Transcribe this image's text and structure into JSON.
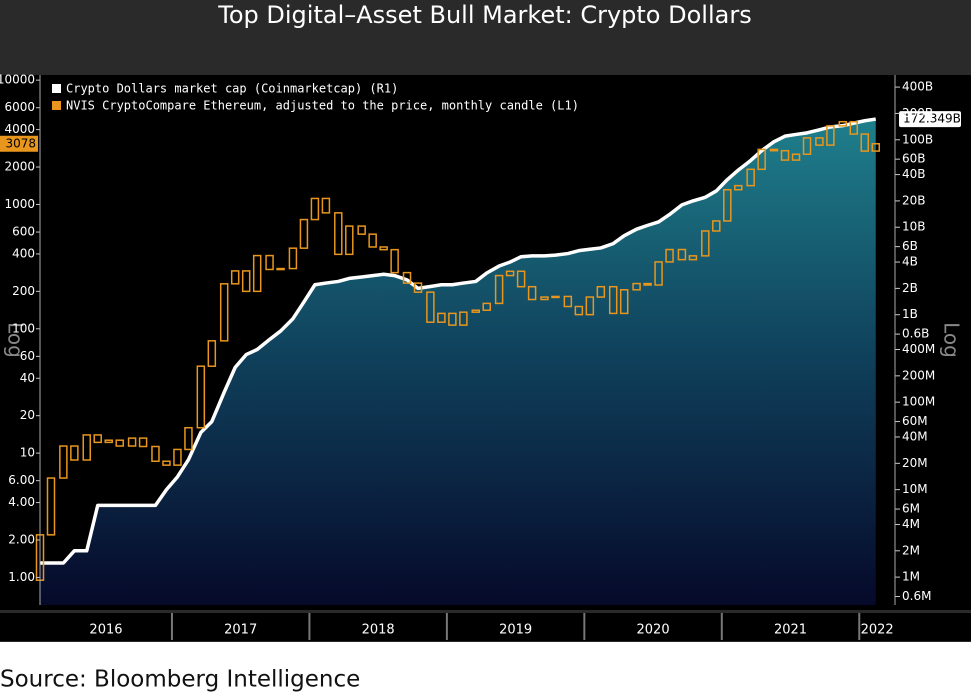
{
  "chart_data": {
    "type": "candle-area",
    "title": "Top Digital–Asset Bull Market: Crypto Dollars",
    "source": "Source: Bloomberg Intelligence",
    "y_label": "Log",
    "y2_label": "Log",
    "log_scale": true,
    "x": [
      2016.04,
      2016.12,
      2016.21,
      2016.29,
      2016.38,
      2016.46,
      2016.54,
      2016.62,
      2016.71,
      2016.79,
      2016.88,
      2016.96,
      2017.04,
      2017.12,
      2017.21,
      2017.29,
      2017.38,
      2017.46,
      2017.54,
      2017.62,
      2017.71,
      2017.79,
      2017.88,
      2017.96,
      2018.04,
      2018.12,
      2018.21,
      2018.29,
      2018.38,
      2018.46,
      2018.54,
      2018.62,
      2018.71,
      2018.79,
      2018.88,
      2018.96,
      2019.04,
      2019.12,
      2019.21,
      2019.29,
      2019.38,
      2019.46,
      2019.54,
      2019.62,
      2019.71,
      2019.79,
      2019.88,
      2019.96,
      2020.04,
      2020.12,
      2020.21,
      2020.29,
      2020.38,
      2020.46,
      2020.54,
      2020.62,
      2020.71,
      2020.79,
      2020.88,
      2020.96,
      2021.04,
      2021.12,
      2021.21,
      2021.29,
      2021.38,
      2021.46,
      2021.54,
      2021.62,
      2021.71,
      2021.79,
      2021.88,
      2021.96,
      2022.04,
      2022.12
    ],
    "xlim": [
      2016.04,
      2022.26
    ],
    "xticks": [
      2016,
      2017,
      2018,
      2019,
      2020,
      2021,
      2022
    ],
    "ylim": [
      0.6,
      11000
    ],
    "yticks": [
      {
        "value": 1,
        "label": "1.00"
      },
      {
        "value": 2,
        "label": "2.00"
      },
      {
        "value": 4,
        "label": "4.00"
      },
      {
        "value": 6,
        "label": "6.00"
      },
      10,
      20,
      40,
      60,
      100,
      200,
      400,
      600,
      1000,
      2000,
      4000,
      6000,
      10000
    ],
    "y2lim": [
      480000,
      550000000000
    ],
    "y2ticks": [
      {
        "value": 600000,
        "label": "0.6M"
      },
      {
        "value": 1000000,
        "label": "1M"
      },
      {
        "value": 2000000,
        "label": "2M"
      },
      {
        "value": 4000000,
        "label": "4M"
      },
      {
        "value": 6000000,
        "label": "6M"
      },
      {
        "value": 10000000,
        "label": "10M"
      },
      {
        "value": 20000000,
        "label": "20M"
      },
      {
        "value": 40000000,
        "label": "40M"
      },
      {
        "value": 60000000,
        "label": "60M"
      },
      {
        "value": 100000000,
        "label": "100M"
      },
      {
        "value": 200000000,
        "label": "200M"
      },
      {
        "value": 400000000,
        "label": "400M"
      },
      {
        "value": 600000000,
        "label": "0.6B"
      },
      {
        "value": 1000000000,
        "label": "1B"
      },
      {
        "value": 2000000000,
        "label": "2B"
      },
      {
        "value": 4000000000,
        "label": "4B"
      },
      {
        "value": 6000000000,
        "label": "6B"
      },
      {
        "value": 10000000000,
        "label": "10B"
      },
      {
        "value": 20000000000,
        "label": "20B"
      },
      {
        "value": 40000000000,
        "label": "40B"
      },
      {
        "value": 60000000000,
        "label": "60B"
      },
      {
        "value": 100000000000,
        "label": "100B"
      },
      {
        "value": 200000000000,
        "label": "200B"
      },
      {
        "value": 400000000000,
        "label": "400B"
      }
    ],
    "series": [
      {
        "name": "Crypto Dollars market cap (Coinmarketcap) (R1)",
        "color": "#ffffff",
        "axis": "y2",
        "last_label": "172.349B",
        "values": [
          1450000,
          1450000,
          1450000,
          2000000,
          2000000,
          6600000,
          6600000,
          6600000,
          6600000,
          6600000,
          6600000,
          10000000,
          14000000,
          22000000,
          45000000,
          60000000,
          130000000,
          250000000,
          350000000,
          400000000,
          520000000,
          650000000,
          900000000,
          1400000000,
          2200000000,
          2300000000,
          2400000000,
          2600000000,
          2700000000,
          2800000000,
          2900000000,
          2800000000,
          2500000000,
          2000000000,
          2100000000,
          2200000000,
          2200000000,
          2300000000,
          2400000000,
          3000000000,
          3600000000,
          4000000000,
          4600000000,
          4700000000,
          4700000000,
          4800000000,
          5000000000,
          5400000000,
          5600000000,
          5800000000,
          6500000000,
          8000000000,
          9500000000,
          10500000000,
          11500000000,
          14000000000,
          18000000000,
          20000000000,
          22000000000,
          26000000000,
          35000000000,
          45000000000,
          58000000000,
          75000000000,
          95000000000,
          110000000000,
          115000000000,
          120000000000,
          130000000000,
          140000000000,
          145000000000,
          155000000000,
          165000000000,
          172349000000
        ]
      },
      {
        "name": "NVIS CryptoCompare Ethereum, adjusted to the price, monthly candle (L1)",
        "color": "#e8961e",
        "axis": "y",
        "open": [
          0.95,
          2.2,
          6.3,
          11.4,
          8.8,
          14,
          12.2,
          12.7,
          11.4,
          13.2,
          11.3,
          8.6,
          8.0,
          10.7,
          16,
          50,
          80,
          230,
          292,
          200,
          388,
          300,
          305,
          445,
          756,
          1118,
          856,
          397,
          670,
          577,
          455,
          433,
          283,
          233,
          197,
          113,
          133,
          107,
          136,
          141,
          160,
          268,
          290,
          218,
          172,
          180,
          182,
          151,
          130,
          180,
          218,
          133,
          206,
          231,
          225,
          345,
          434,
          360,
          386,
          612,
          737,
          1314,
          1417,
          1918,
          2773,
          2707,
          2275,
          2536,
          3433,
          3001,
          4288,
          4631,
          3683,
          2688
        ],
        "close": [
          2.2,
          6.3,
          11.4,
          8.8,
          14,
          12.2,
          12.7,
          11.4,
          13.2,
          11.3,
          8.6,
          8.0,
          10.7,
          16,
          50,
          80,
          230,
          292,
          200,
          388,
          300,
          305,
          445,
          756,
          1118,
          856,
          397,
          670,
          577,
          455,
          433,
          283,
          233,
          197,
          113,
          133,
          107,
          136,
          141,
          160,
          268,
          290,
          218,
          172,
          180,
          182,
          151,
          130,
          180,
          218,
          133,
          206,
          231,
          225,
          345,
          434,
          360,
          386,
          612,
          737,
          1314,
          1417,
          1918,
          2773,
          2707,
          2275,
          2536,
          3433,
          3001,
          4288,
          4631,
          3683,
          2688,
          3078
        ]
      }
    ]
  }
}
